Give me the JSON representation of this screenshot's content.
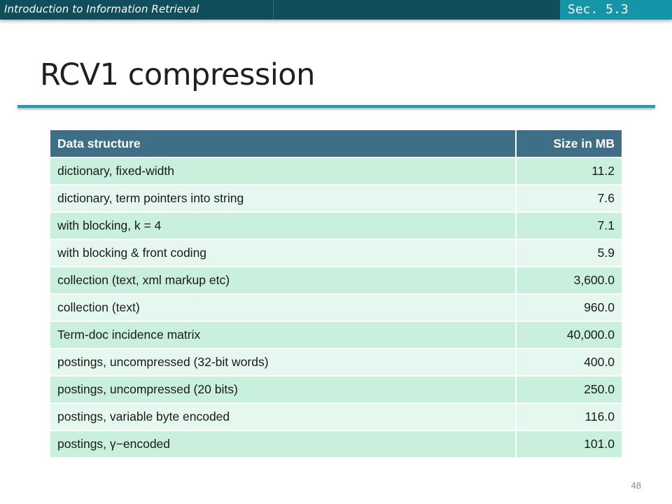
{
  "header": {
    "course_title": "Introduction to Information Retrieval",
    "section_label": "Sec. 5.3",
    "bar_color": "#0f4e5a",
    "section_color": "#1795a8"
  },
  "title": "RCV1 compression",
  "table": {
    "columns": [
      "Data structure",
      "Size in MB"
    ],
    "header_color": "#3f6f86",
    "row_colors": [
      "#c8f0dc",
      "#e5f8ef"
    ],
    "rows": [
      {
        "structure": "dictionary, fixed-width",
        "size": "11.2"
      },
      {
        "structure": "dictionary, term pointers into string",
        "size": "7.6"
      },
      {
        "structure": "with blocking, k = 4",
        "size": "7.1"
      },
      {
        "structure": "with blocking & front coding",
        "size": "5.9"
      },
      {
        "structure": "collection (text, xml markup etc)",
        "size": "3,600.0"
      },
      {
        "structure": "collection (text)",
        "size": "960.0"
      },
      {
        "structure": "Term-doc incidence matrix",
        "size": "40,000.0"
      },
      {
        "structure": "postings, uncompressed (32-bit words)",
        "size": "400.0"
      },
      {
        "structure": "postings, uncompressed (20 bits)",
        "size": "250.0"
      },
      {
        "structure": "postings, variable byte encoded",
        "size": "116.0"
      },
      {
        "structure": "postings, γ−encoded",
        "size": "101.0"
      }
    ]
  },
  "page_number": "48"
}
